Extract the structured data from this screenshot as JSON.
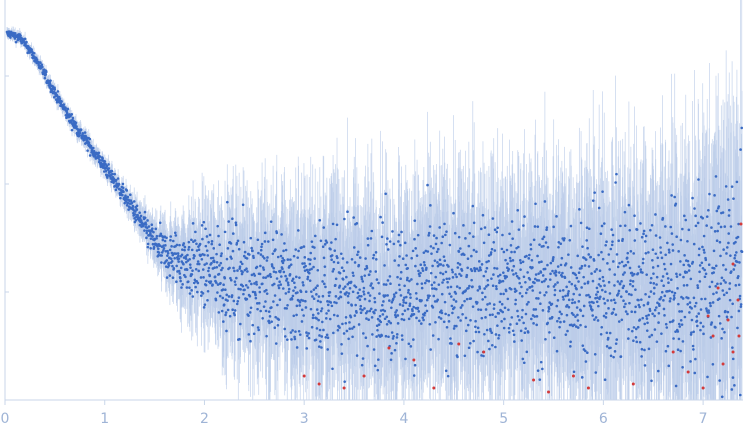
{
  "chart_data": {
    "type": "scatter",
    "title": "",
    "xlabel": "",
    "ylabel": "",
    "xlim": [
      0,
      7.4
    ],
    "ylim": [
      0,
      1
    ],
    "x_tick_labels": [
      "0",
      "1",
      "2",
      "3",
      "4",
      "5",
      "6",
      "7"
    ],
    "x_ticks": [
      0,
      1,
      2,
      3,
      4,
      5,
      6,
      7
    ],
    "y_ticks": [
      0.27,
      0.54,
      0.81
    ],
    "grid": false,
    "legend": "none",
    "series": [
      {
        "role": "main",
        "color": "#3a6bc4",
        "errorbar_color": "#b9cbe8",
        "points": [
          [
            0.05,
            0.915
          ],
          [
            0.15,
            0.905
          ],
          [
            0.25,
            0.875
          ],
          [
            0.35,
            0.835
          ],
          [
            0.45,
            0.79
          ],
          [
            0.55,
            0.745
          ],
          [
            0.65,
            0.705
          ],
          [
            0.75,
            0.67
          ],
          [
            0.85,
            0.635
          ],
          [
            0.95,
            0.6
          ],
          [
            1.05,
            0.565
          ],
          [
            1.15,
            0.53
          ],
          [
            1.25,
            0.49
          ],
          [
            1.35,
            0.45
          ],
          [
            1.45,
            0.41
          ],
          [
            1.55,
            0.38
          ],
          [
            1.65,
            0.36
          ],
          [
            1.8,
            0.345
          ],
          [
            2.0,
            0.33
          ],
          [
            2.25,
            0.315
          ],
          [
            2.5,
            0.3
          ],
          [
            2.75,
            0.285
          ],
          [
            3.0,
            0.275
          ],
          [
            3.25,
            0.275
          ],
          [
            3.5,
            0.27
          ],
          [
            3.75,
            0.27
          ],
          [
            4.0,
            0.27
          ],
          [
            4.25,
            0.275
          ],
          [
            4.5,
            0.28
          ],
          [
            4.75,
            0.28
          ],
          [
            5.0,
            0.28
          ],
          [
            5.25,
            0.28
          ],
          [
            5.5,
            0.285
          ],
          [
            5.75,
            0.285
          ],
          [
            6.0,
            0.285
          ],
          [
            6.25,
            0.29
          ],
          [
            6.5,
            0.29
          ],
          [
            6.75,
            0.29
          ],
          [
            7.0,
            0.295
          ],
          [
            7.2,
            0.3
          ],
          [
            7.35,
            0.305
          ]
        ],
        "spread": [
          [
            0.0,
            0.005
          ],
          [
            1.2,
            0.01
          ],
          [
            1.5,
            0.02
          ],
          [
            1.8,
            0.04
          ],
          [
            2.2,
            0.06
          ],
          [
            3.0,
            0.08
          ],
          [
            5.0,
            0.09
          ],
          [
            6.5,
            0.1
          ],
          [
            7.0,
            0.12
          ],
          [
            7.4,
            0.14
          ]
        ]
      },
      {
        "role": "outliers",
        "color": "#d43a3a",
        "points": [
          [
            3.0,
            0.06
          ],
          [
            3.15,
            0.04
          ],
          [
            3.4,
            0.03
          ],
          [
            3.6,
            0.06
          ],
          [
            3.85,
            0.13
          ],
          [
            4.1,
            0.1
          ],
          [
            4.3,
            0.03
          ],
          [
            4.55,
            0.14
          ],
          [
            4.8,
            0.12
          ],
          [
            5.3,
            0.05
          ],
          [
            5.45,
            0.02
          ],
          [
            5.7,
            0.06
          ],
          [
            5.85,
            0.03
          ],
          [
            6.3,
            0.04
          ],
          [
            6.7,
            0.12
          ],
          [
            6.85,
            0.07
          ],
          [
            7.0,
            0.03
          ],
          [
            7.05,
            0.21
          ],
          [
            7.1,
            0.16
          ],
          [
            7.15,
            0.28
          ],
          [
            7.2,
            0.09
          ],
          [
            7.25,
            0.2
          ],
          [
            7.3,
            0.34
          ],
          [
            7.35,
            0.25
          ],
          [
            7.38,
            0.44
          ],
          [
            7.3,
            0.12
          ],
          [
            7.36,
            0.16
          ]
        ]
      }
    ]
  }
}
